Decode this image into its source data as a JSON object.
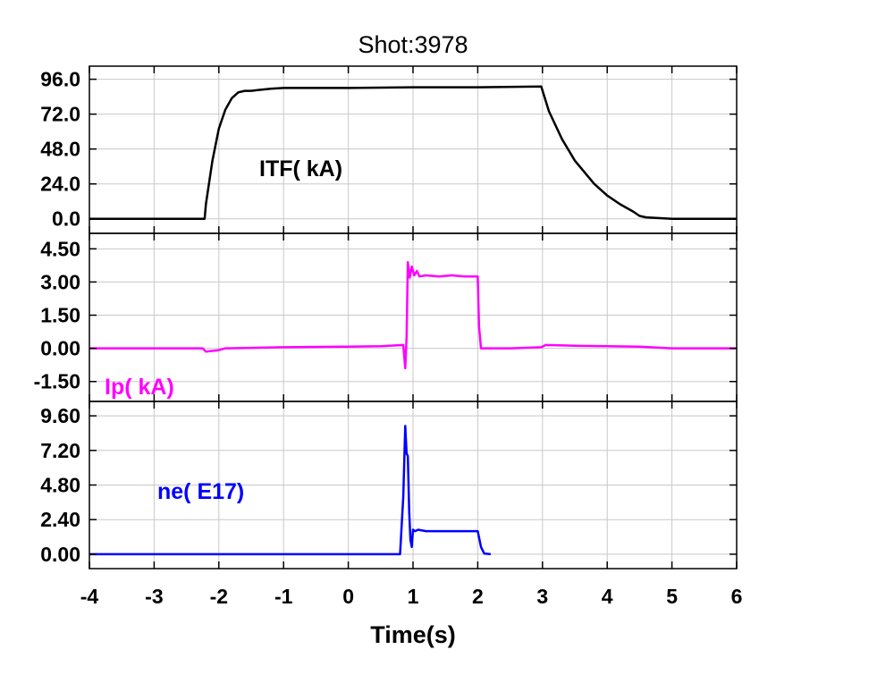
{
  "chart_data": {
    "type": "line",
    "title": "Shot:3978",
    "xlabel": "Time(s)",
    "xlim": [
      -4,
      6
    ],
    "xticks": [
      -4,
      -3,
      -2,
      -1,
      0,
      1,
      2,
      3,
      4,
      5,
      6
    ],
    "xtick_labels": [
      "-4",
      "-3",
      "-2",
      "-1",
      "0",
      "1",
      "2",
      "3",
      "4",
      "5",
      "6"
    ],
    "grid": true,
    "panels": [
      {
        "series_label": "ITF( kA)",
        "color": "#000000",
        "ylim": [
          -10,
          105
        ],
        "yticks": [
          0,
          24,
          48,
          72,
          96
        ],
        "ytick_labels": [
          "0.0",
          "24.0",
          "48.0",
          "72.0",
          "96.0"
        ],
        "x": [
          -4.0,
          -2.22,
          -2.2,
          -2.1,
          -2.0,
          -1.9,
          -1.8,
          -1.7,
          -1.6,
          -1.5,
          -1.4,
          -1.2,
          -1.0,
          -0.5,
          0.0,
          1.0,
          2.0,
          2.98,
          3.1,
          3.3,
          3.5,
          3.8,
          4.0,
          4.2,
          4.4,
          4.5,
          4.6,
          5.0,
          6.0
        ],
        "y": [
          0.0,
          0.0,
          10.0,
          40.0,
          62.0,
          75.0,
          83.0,
          87.0,
          88.0,
          88.0,
          88.5,
          89.5,
          90.0,
          90.0,
          90.0,
          90.5,
          90.5,
          91.0,
          74.0,
          55.0,
          40.0,
          24.0,
          16.0,
          10.0,
          5.0,
          2.0,
          1.0,
          0.0,
          0.0
        ]
      },
      {
        "series_label": "Ip( kA)",
        "color": "#ff00ff",
        "ylim": [
          -2.4,
          5.2
        ],
        "yticks": [
          -1.5,
          0.0,
          1.5,
          3.0,
          4.5
        ],
        "ytick_labels": [
          "-1.50",
          "0.00",
          "1.50",
          "3.00",
          "4.50"
        ],
        "x": [
          -4.0,
          -2.25,
          -2.2,
          -2.0,
          -1.9,
          -1.0,
          0.0,
          0.5,
          0.85,
          0.88,
          0.9,
          0.92,
          0.95,
          0.98,
          1.02,
          1.06,
          1.1,
          1.2,
          1.4,
          1.6,
          1.8,
          2.0,
          2.02,
          2.05,
          2.2,
          2.5,
          2.98,
          3.05,
          3.5,
          4.0,
          4.5,
          5.0,
          6.0
        ],
        "y": [
          0.0,
          0.0,
          -0.15,
          -0.08,
          0.0,
          0.05,
          0.08,
          0.1,
          0.15,
          -0.9,
          0.5,
          3.9,
          3.2,
          3.7,
          3.3,
          3.5,
          3.25,
          3.3,
          3.25,
          3.3,
          3.25,
          3.25,
          1.0,
          0.0,
          0.0,
          0.0,
          0.05,
          0.15,
          0.12,
          0.1,
          0.08,
          0.0,
          0.0
        ]
      },
      {
        "series_label": "ne( E17)",
        "color": "#0000ff",
        "ylim": [
          -1.0,
          10.6
        ],
        "yticks": [
          0.0,
          2.4,
          4.8,
          7.2,
          9.6
        ],
        "ytick_labels": [
          "0.00",
          "2.40",
          "4.80",
          "7.20",
          "9.60"
        ],
        "x": [
          -4.0,
          -2.0,
          0.0,
          0.8,
          0.85,
          0.88,
          0.9,
          0.92,
          0.94,
          0.96,
          0.98,
          1.0,
          1.03,
          1.08,
          1.2,
          1.5,
          1.8,
          2.0,
          2.05,
          2.1,
          2.2
        ],
        "y": [
          0.0,
          0.0,
          0.0,
          0.0,
          4.0,
          8.9,
          7.0,
          6.8,
          3.0,
          1.0,
          0.5,
          1.7,
          1.6,
          1.7,
          1.6,
          1.6,
          1.6,
          1.6,
          0.5,
          0.05,
          0.0
        ]
      }
    ]
  }
}
